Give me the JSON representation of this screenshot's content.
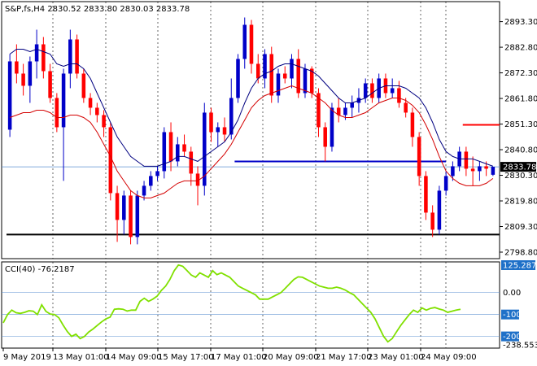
{
  "header": {
    "main": "S&P,fs,H4  2830.52 2833.80 2830.03 2833.78",
    "cci": "CCI(40) -76.2187"
  },
  "colors": {
    "bull": "#0000c8",
    "bear": "#ff0000",
    "ma_slow": "#000080",
    "ma_fast": "#d40000",
    "cci": "#80e000",
    "price_tag": "#000000",
    "cci_tag": "#1e70c8",
    "support": "#000000",
    "level_blue": "#0000c8",
    "level_red": "#ff0000"
  },
  "chart_data": [
    {
      "type": "candlestick",
      "title": "S&P,fs,H4",
      "ylim": [
        2798.8,
        2897.5
      ],
      "y_ticks": [
        "2893.30",
        "2882.80",
        "2872.30",
        "2861.80",
        "2851.30",
        "2840.80",
        "2830.30",
        "2819.80",
        "2809.30",
        "2798.80"
      ],
      "x_ticks": [
        "9 May 2019",
        "13 May 01:00",
        "14 May 09:00",
        "15 May 17:00",
        "17 May 01:00",
        "20 May 09:00",
        "21 May 17:00",
        "23 May 01:00",
        "24 May 09:00"
      ],
      "last_price": "2833.78",
      "ohlc": [
        [
          2849,
          2880,
          2846,
          2877
        ],
        [
          2877,
          2884,
          2868,
          2872
        ],
        [
          2872,
          2876,
          2863,
          2867
        ],
        [
          2867,
          2879,
          2860,
          2877
        ],
        [
          2877,
          2890,
          2870,
          2884
        ],
        [
          2884,
          2887,
          2870,
          2873
        ],
        [
          2873,
          2876,
          2860,
          2862
        ],
        [
          2862,
          2864,
          2848,
          2850
        ],
        [
          2850,
          2874,
          2828,
          2872
        ],
        [
          2872,
          2890,
          2866,
          2886
        ],
        [
          2886,
          2888,
          2870,
          2872
        ],
        [
          2872,
          2874,
          2860,
          2862
        ],
        [
          2862,
          2864,
          2855,
          2858
        ],
        [
          2858,
          2860,
          2852,
          2855
        ],
        [
          2855,
          2857,
          2846,
          2850
        ],
        [
          2850,
          2852,
          2820,
          2823
        ],
        [
          2823,
          2826,
          2803,
          2812
        ],
        [
          2812,
          2824,
          2806,
          2822
        ],
        [
          2822,
          2824,
          2802,
          2805
        ],
        [
          2805,
          2824,
          2802,
          2822
        ],
        [
          2822,
          2828,
          2820,
          2826
        ],
        [
          2826,
          2832,
          2824,
          2830
        ],
        [
          2830,
          2834,
          2828,
          2832
        ],
        [
          2832,
          2850,
          2829,
          2848
        ],
        [
          2848,
          2852,
          2832,
          2836
        ],
        [
          2836,
          2846,
          2834,
          2843
        ],
        [
          2843,
          2847,
          2838,
          2840
        ],
        [
          2840,
          2842,
          2826,
          2831
        ],
        [
          2831,
          2834,
          2818,
          2826
        ],
        [
          2826,
          2860,
          2822,
          2856
        ],
        [
          2856,
          2858,
          2844,
          2848
        ],
        [
          2848,
          2852,
          2842,
          2850
        ],
        [
          2850,
          2854,
          2844,
          2847
        ],
        [
          2847,
          2870,
          2845,
          2862
        ],
        [
          2862,
          2880,
          2860,
          2878
        ],
        [
          2878,
          2895,
          2874,
          2892
        ],
        [
          2892,
          2894,
          2872,
          2876
        ],
        [
          2876,
          2880,
          2868,
          2870
        ],
        [
          2870,
          2882,
          2866,
          2880
        ],
        [
          2880,
          2883,
          2860,
          2863
        ],
        [
          2863,
          2874,
          2860,
          2872
        ],
        [
          2872,
          2875,
          2868,
          2870
        ],
        [
          2870,
          2880,
          2866,
          2878
        ],
        [
          2878,
          2882,
          2862,
          2864
        ],
        [
          2864,
          2876,
          2862,
          2874
        ],
        [
          2874,
          2875,
          2862,
          2864
        ],
        [
          2864,
          2866,
          2846,
          2850
        ],
        [
          2850,
          2852,
          2836,
          2842
        ],
        [
          2842,
          2860,
          2840,
          2858
        ],
        [
          2858,
          2862,
          2852,
          2855
        ],
        [
          2855,
          2860,
          2853,
          2858
        ],
        [
          2858,
          2863,
          2854,
          2860
        ],
        [
          2860,
          2866,
          2856,
          2862
        ],
        [
          2862,
          2870,
          2860,
          2868
        ],
        [
          2868,
          2870,
          2860,
          2862
        ],
        [
          2862,
          2872,
          2860,
          2870
        ],
        [
          2870,
          2872,
          2862,
          2864
        ],
        [
          2864,
          2870,
          2862,
          2866
        ],
        [
          2866,
          2869,
          2858,
          2860
        ],
        [
          2860,
          2862,
          2854,
          2856
        ],
        [
          2856,
          2858,
          2842,
          2846
        ],
        [
          2846,
          2848,
          2826,
          2830
        ],
        [
          2830,
          2832,
          2812,
          2815
        ],
        [
          2815,
          2818,
          2805,
          2808
        ],
        [
          2808,
          2826,
          2806,
          2824
        ],
        [
          2824,
          2832,
          2822,
          2830
        ],
        [
          2830,
          2836,
          2828,
          2834
        ],
        [
          2834,
          2842,
          2832,
          2840
        ],
        [
          2840,
          2842,
          2830,
          2833
        ],
        [
          2833,
          2838,
          2826,
          2832
        ],
        [
          2832,
          2836,
          2828,
          2834
        ],
        [
          2834,
          2836,
          2830,
          2833
        ],
        [
          2830.52,
          2833.8,
          2830.03,
          2833.78
        ]
      ],
      "ma_slow": [
        2880,
        2882,
        2882,
        2881,
        2882,
        2881,
        2880,
        2876,
        2875,
        2876,
        2876,
        2874,
        2870,
        2864,
        2858,
        2852,
        2846,
        2842,
        2838,
        2836,
        2834,
        2834,
        2834,
        2835,
        2836,
        2838,
        2838,
        2837,
        2836,
        2838,
        2840,
        2842,
        2844,
        2848,
        2853,
        2860,
        2866,
        2870,
        2872,
        2873,
        2875,
        2876,
        2876,
        2875,
        2874,
        2873,
        2871,
        2868,
        2865,
        2862,
        2860,
        2860,
        2861,
        2862,
        2864,
        2866,
        2867,
        2867,
        2867,
        2866,
        2864,
        2862,
        2858,
        2852,
        2845,
        2840,
        2838,
        2837,
        2837,
        2837,
        2836,
        2835,
        2834
      ],
      "ma_fast": [
        2854,
        2855,
        2856,
        2856,
        2857,
        2857,
        2856,
        2854,
        2854,
        2855,
        2855,
        2854,
        2852,
        2848,
        2843,
        2838,
        2832,
        2828,
        2824,
        2822,
        2821,
        2821,
        2822,
        2823,
        2825,
        2827,
        2828,
        2828,
        2828,
        2830,
        2833,
        2836,
        2839,
        2843,
        2848,
        2853,
        2858,
        2861,
        2863,
        2864,
        2865,
        2866,
        2867,
        2866,
        2865,
        2864,
        2862,
        2860,
        2857,
        2855,
        2854,
        2854,
        2855,
        2856,
        2858,
        2860,
        2861,
        2862,
        2862,
        2861,
        2859,
        2856,
        2851,
        2845,
        2838,
        2832,
        2829,
        2827,
        2826,
        2826,
        2826,
        2827,
        2829
      ],
      "levels": [
        {
          "name": "support",
          "value": 2806,
          "from": 0,
          "to": 73
        },
        {
          "name": "resistance-blue",
          "value": 2836,
          "from": 34,
          "to": 65
        },
        {
          "name": "resistance-red",
          "value": 2851,
          "from": 68,
          "to": 80
        }
      ]
    },
    {
      "type": "line",
      "title": "CCI(40)",
      "ylim": [
        -238.5534,
        125.2871
      ],
      "y_ticks": [
        "125.2871",
        "0.00",
        "-100",
        "-200",
        "-238.5534"
      ],
      "last_value": "-76.2187",
      "values": [
        -138,
        -100,
        -80,
        -92,
        -95,
        -90,
        -83,
        -85,
        -100,
        -56,
        -86,
        -98,
        -100,
        -115,
        -148,
        -178,
        -200,
        -190,
        -210,
        -200,
        -180,
        -166,
        -150,
        -134,
        -120,
        -112,
        -76,
        -74,
        -76,
        -84,
        -80,
        -80,
        -40,
        -26,
        -40,
        -30,
        -16,
        10,
        30,
        60,
        100,
        126,
        120,
        100,
        80,
        70,
        90,
        80,
        70,
        100,
        82,
        90,
        80,
        70,
        50,
        30,
        20,
        10,
        0,
        -10,
        -30,
        -30,
        -30,
        -20,
        -10,
        0,
        20,
        40,
        60,
        72,
        70,
        60,
        50,
        40,
        30,
        25,
        20,
        20,
        25,
        20,
        12,
        0,
        -10,
        -30,
        -50,
        -70,
        -90,
        -120,
        -160,
        -200,
        -225,
        -210,
        -180,
        -150,
        -125,
        -100,
        -80,
        -90,
        -70,
        -80,
        -72,
        -68,
        -75,
        -80,
        -90,
        -85,
        -80,
        -76
      ]
    }
  ]
}
